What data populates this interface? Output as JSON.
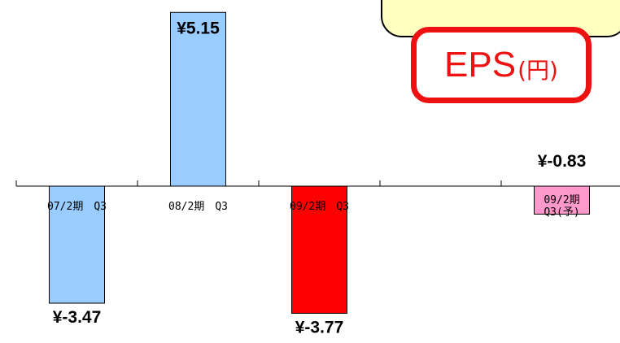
{
  "badge": {
    "main": "EPS",
    "unit": "(円)"
  },
  "colors": {
    "blue": "#99ccff",
    "red": "#ff0000",
    "pink": "#ff99cc"
  },
  "chart_data": {
    "type": "bar",
    "title": "EPS(円)",
    "categories": [
      "07/2期　Q3",
      "08/2期　Q3",
      "09/2期　Q3",
      "",
      "09/2期\nQ3(予)"
    ],
    "values": [
      -3.47,
      5.15,
      -3.77,
      null,
      -0.83
    ],
    "labels": [
      "¥-3.47",
      "¥5.15",
      "¥-3.77",
      "",
      "¥-0.83"
    ],
    "bar_colors": [
      "#99ccff",
      "#99ccff",
      "#ff0000",
      "",
      "#ff99cc"
    ],
    "ylim": [
      -4.5,
      6
    ],
    "grid": false,
    "xlabel": "",
    "ylabel": ""
  }
}
